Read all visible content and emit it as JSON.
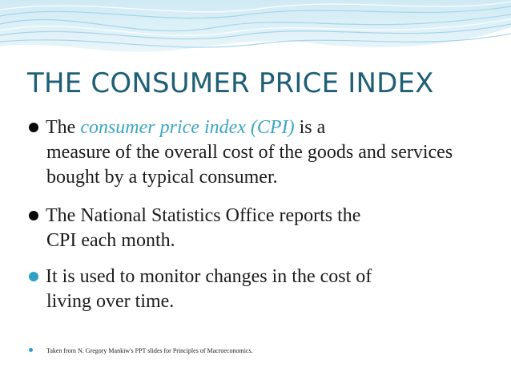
{
  "slide": {
    "title": "THE CONSUMER PRICE INDEX",
    "bullets": [
      {
        "prefix": "The ",
        "emphasis": "consumer price index (CPI)",
        "line1_suffix": " is a",
        "continuation": "measure of the overall cost of the goods and services bought by a typical consumer."
      },
      {
        "first_line": "The National Statistics Office reports the",
        "continuation": "CPI each month."
      },
      {
        "first_line": "It is used to monitor changes in the cost of",
        "continuation": "living over time."
      }
    ],
    "footnote": "Taken from N. Gregory Mankiw's PPT slides for Principles of Macroeconomics."
  },
  "colors": {
    "title": "#1f5f75",
    "emphasis": "#3aa6c2",
    "banner_top": "#d7eef6",
    "banner_bottom": "#ffffff",
    "marker_teal": "#2ea0c6"
  },
  "icons": [
    "wave-banner-decoration",
    "filled-circle-bullet"
  ]
}
